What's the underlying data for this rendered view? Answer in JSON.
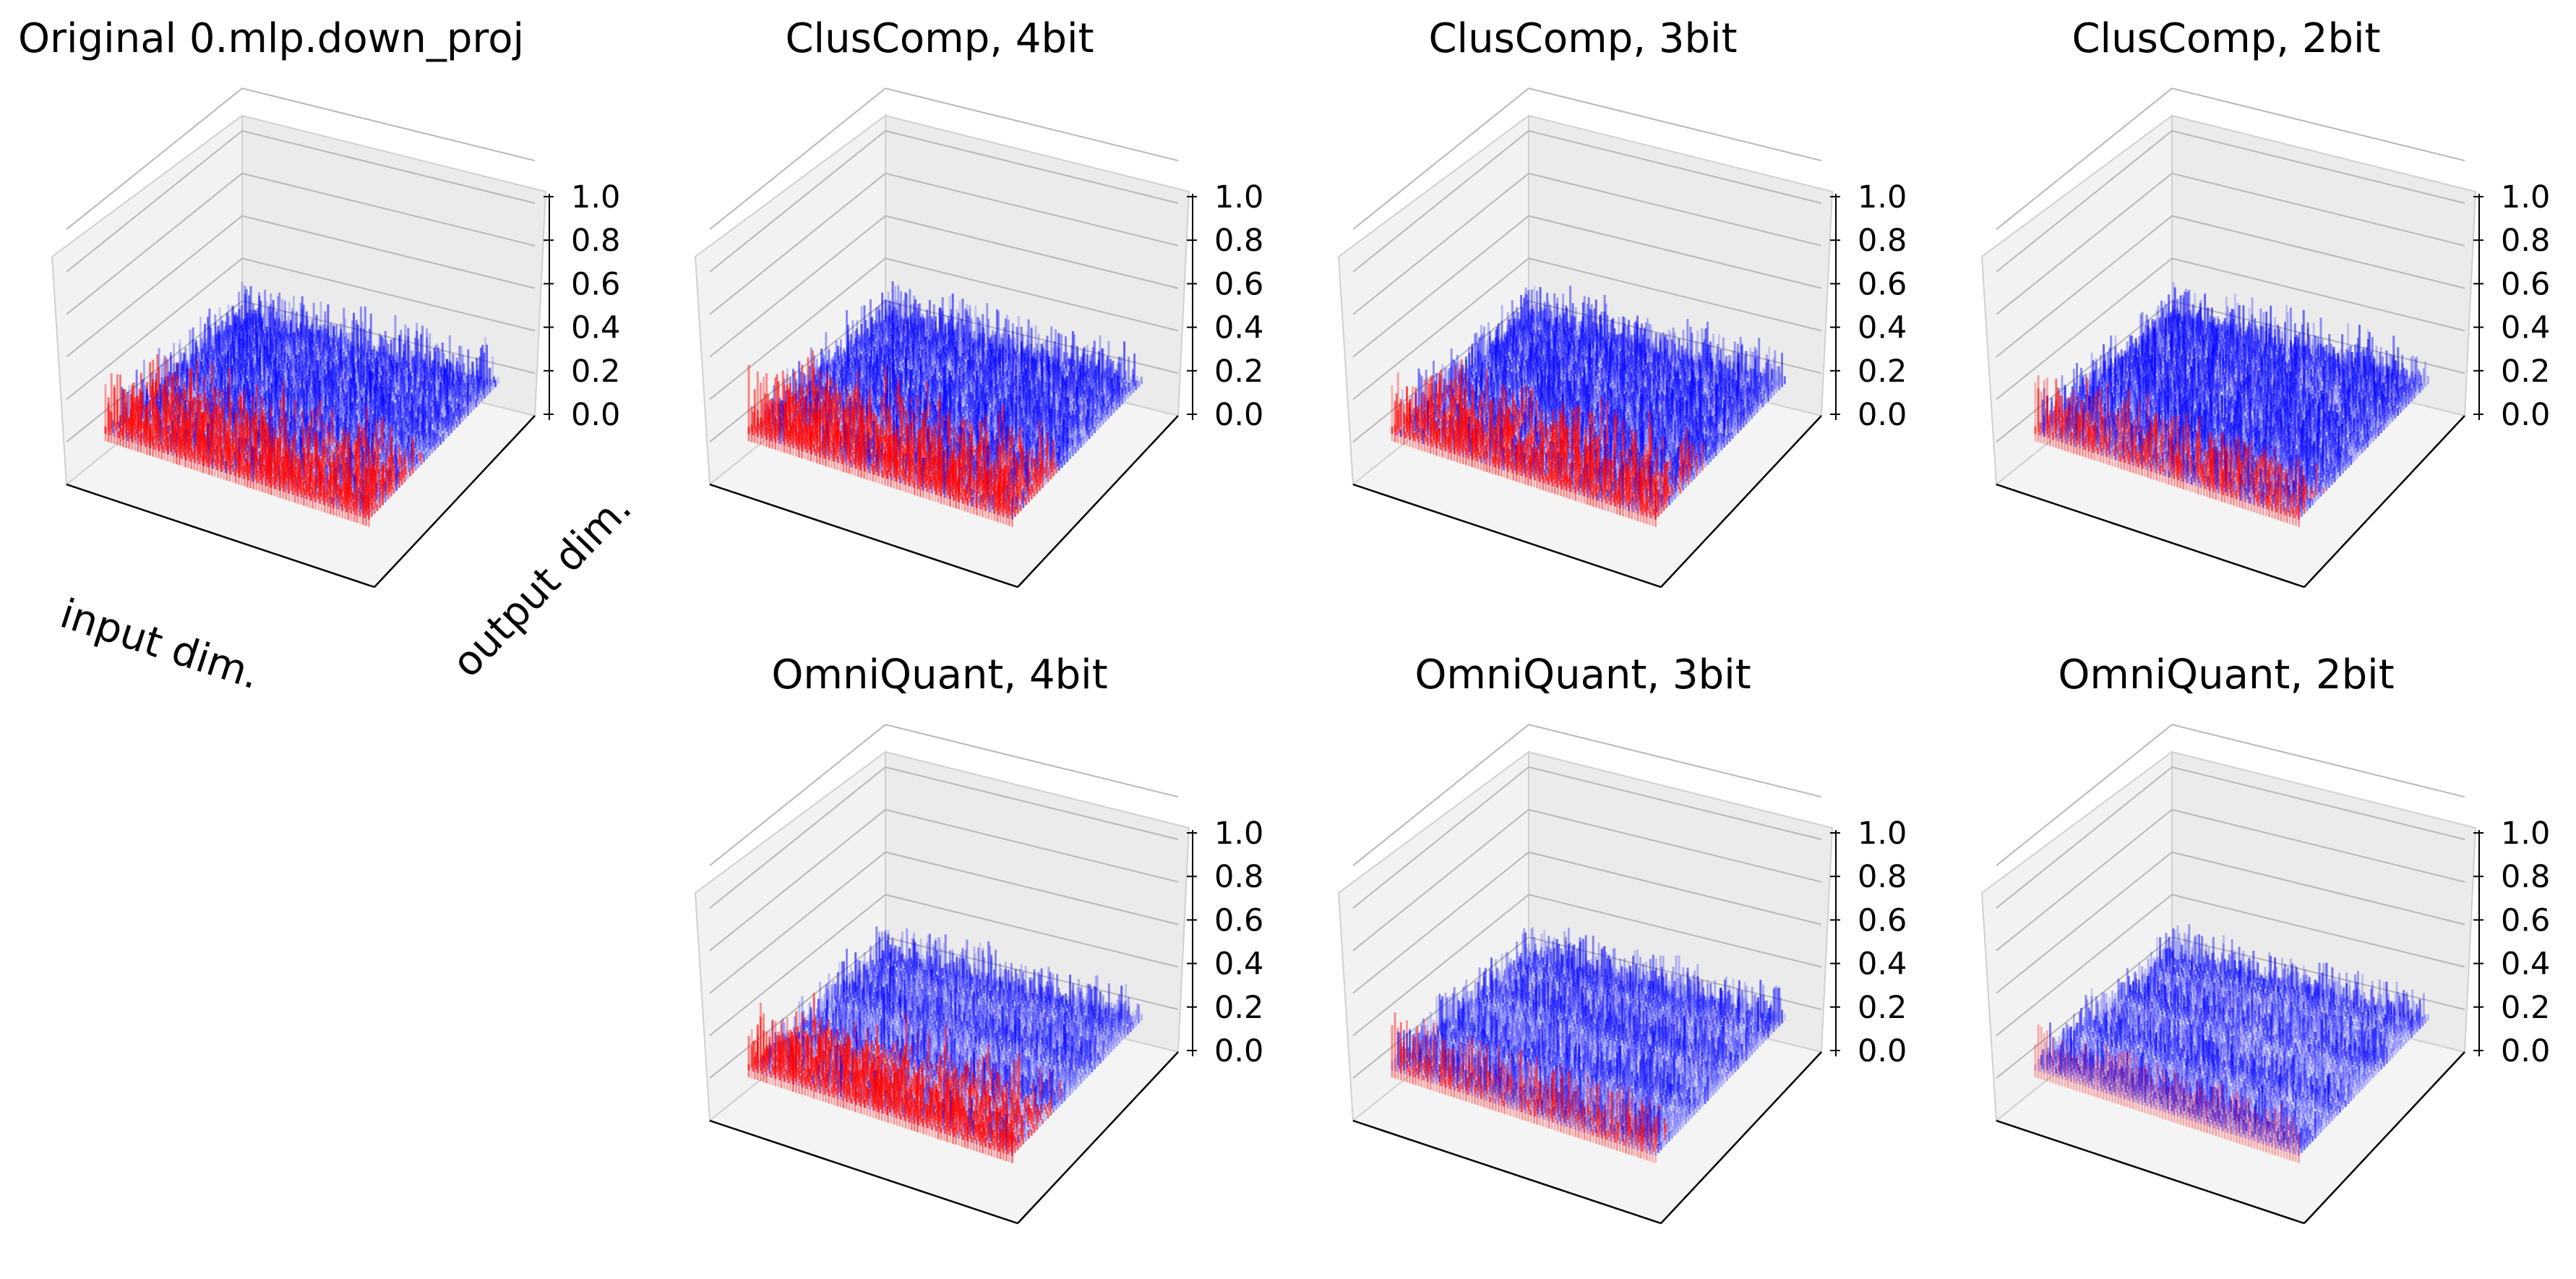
{
  "chart_data": {
    "type": "surface3d",
    "description_of_values": "3D surface plots of normalized weight magnitudes; z in [0,1]; red = high, blue = low",
    "colors": {
      "high": "#ff0000",
      "low": "#0000ff",
      "pane": "#f2f2f2",
      "pane_edge": "#d0d0d0",
      "grid": "#b8b8b8"
    },
    "zlim": [
      0.0,
      1.0
    ],
    "zticks": [
      "0.0",
      "0.2",
      "0.4",
      "0.6",
      "0.8",
      "1.0"
    ],
    "xlabel": "input dim.",
    "ylabel": "output dim.",
    "panels": [
      {
        "title": "Original 0.mlp.down_proj",
        "variant": "original",
        "peak": 0.45,
        "red_bias": 0.62,
        "banding": 0.0
      },
      {
        "title": "ClusComp, 4bit",
        "variant": "cluscomp",
        "peak": 0.45,
        "red_bias": 0.6,
        "banding": 0.0
      },
      {
        "title": "ClusComp, 3bit",
        "variant": "cluscomp",
        "peak": 0.45,
        "red_bias": 0.55,
        "banding": 0.0
      },
      {
        "title": "ClusComp, 2bit",
        "variant": "cluscomp",
        "peak": 0.45,
        "red_bias": 0.45,
        "banding": 0.0
      },
      {
        "title": "OmniQuant, 4bit",
        "variant": "omniquant",
        "peak": 0.45,
        "red_bias": 0.6,
        "banding": 0.1
      },
      {
        "title": "OmniQuant, 3bit",
        "variant": "omniquant",
        "peak": 0.45,
        "red_bias": 0.4,
        "banding": 0.4
      },
      {
        "title": "OmniQuant, 2bit",
        "variant": "omniquant",
        "peak": 0.4,
        "red_bias": 0.15,
        "banding": 0.9
      }
    ]
  }
}
